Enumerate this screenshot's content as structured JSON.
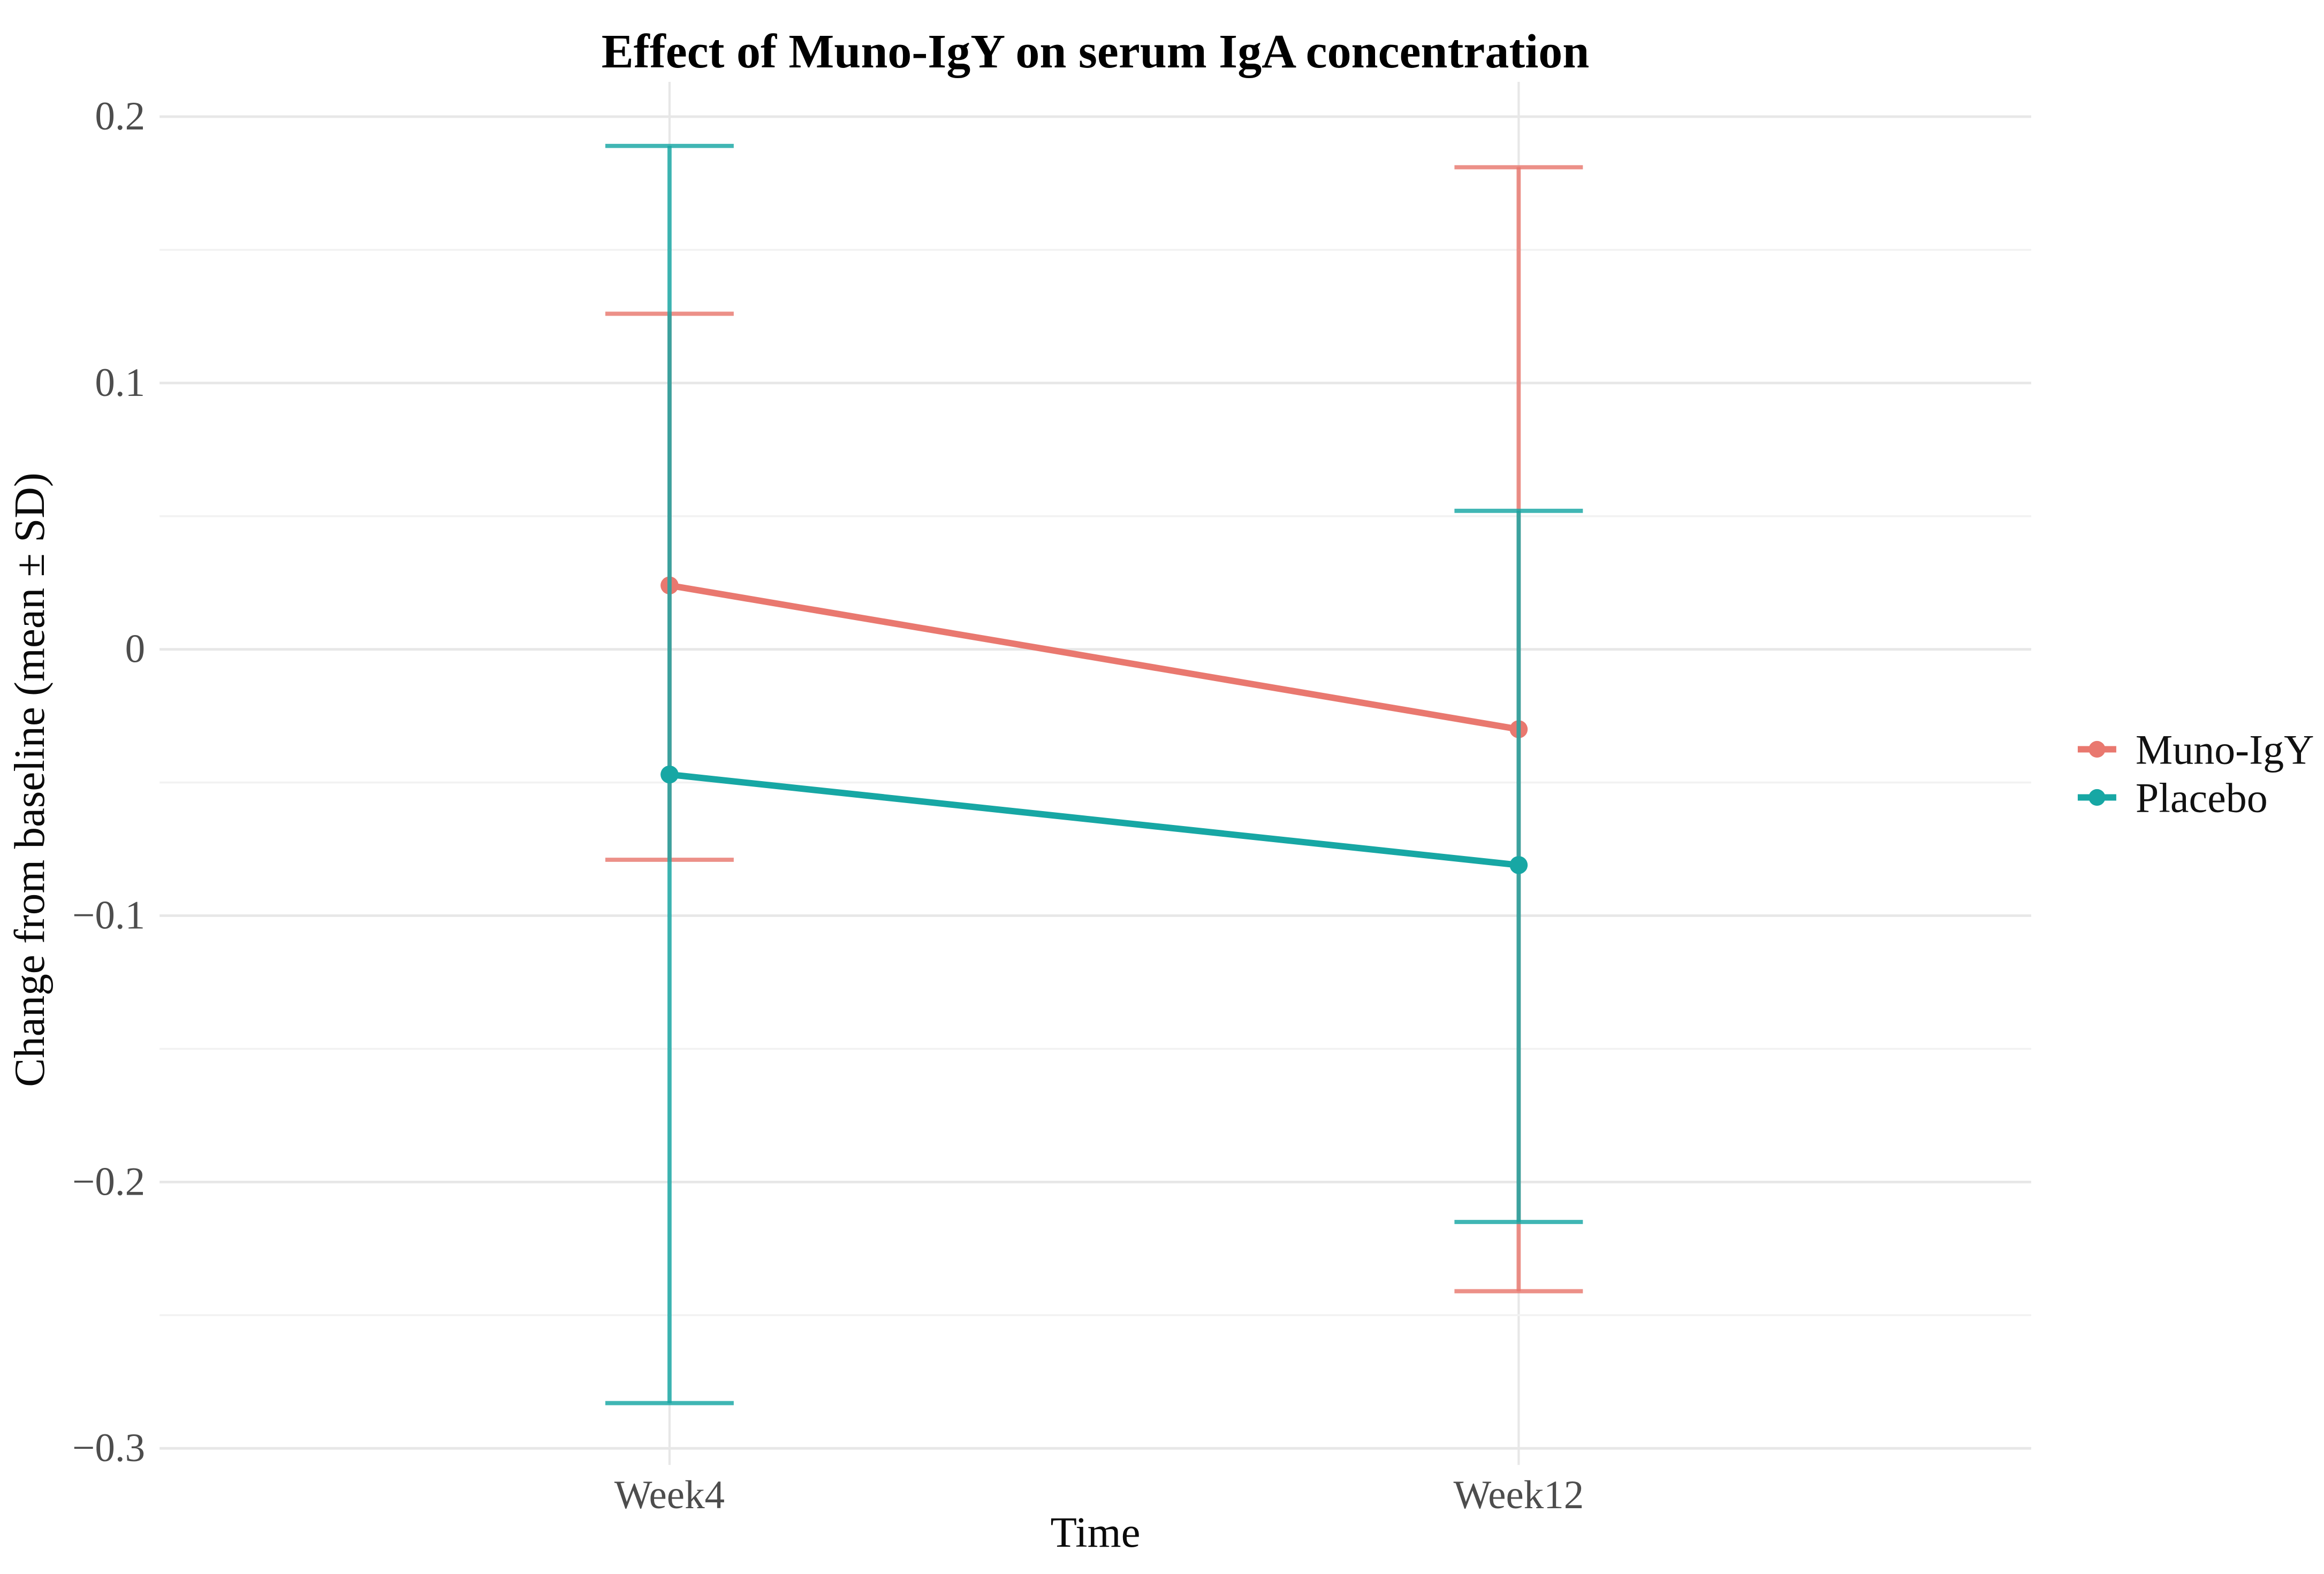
{
  "chart_data": {
    "type": "line",
    "title": "Effect of Muno-IgY on serum IgA concentration",
    "xlabel": "Time",
    "ylabel": "Change from baseline (mean ± SD)",
    "categories": [
      "Week4",
      "Week12"
    ],
    "series": [
      {
        "name": "Muno-IgY",
        "color": "#E9786F",
        "means": [
          0.024,
          -0.03
        ],
        "sd": [
          0.103,
          0.211
        ],
        "error_upper": [
          0.126,
          0.181
        ],
        "error_lower": [
          -0.079,
          -0.241
        ]
      },
      {
        "name": "Placebo",
        "color": "#17A7A4",
        "means": [
          -0.047,
          -0.081
        ],
        "sd": [
          0.236,
          0.134
        ],
        "error_upper": [
          0.189,
          0.052
        ],
        "error_lower": [
          -0.283,
          -0.215
        ]
      }
    ],
    "ylim": [
      -0.306,
      0.213
    ],
    "ytick_values": [
      0.2,
      0.1,
      0,
      -0.1,
      -0.2,
      -0.3
    ],
    "yticks": [
      "0.2",
      "0.1",
      "0",
      "−0.1",
      "−0.2",
      "−0.3"
    ],
    "minor_tick_values": [
      0.15,
      0.05,
      -0.05,
      -0.15,
      -0.25
    ],
    "grid": true,
    "legend_position": "right",
    "error_bars": "mean ± SD",
    "background": "#ffffff",
    "gridline_color": "#e7e7e7"
  }
}
